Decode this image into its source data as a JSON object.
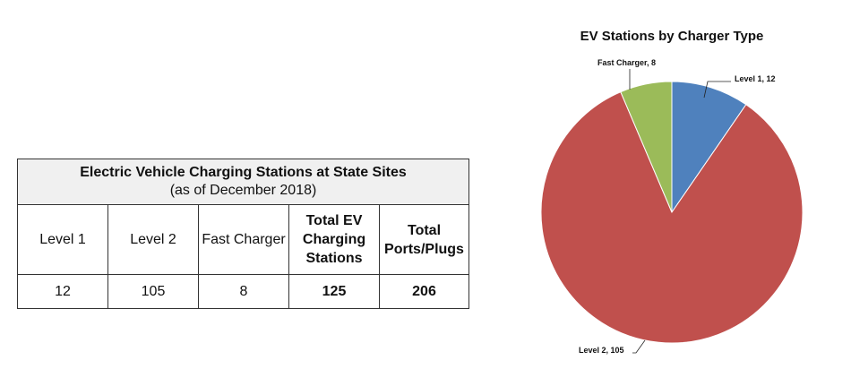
{
  "table": {
    "title": "Electric Vehicle Charging Stations at State Sites",
    "subtitle": "(as of December 2018)",
    "headers": [
      "Level 1",
      "Level 2",
      "Fast Charger",
      "Total EV Charging Stations",
      "Total Ports/Plugs"
    ],
    "values": [
      "12",
      "105",
      "8",
      "125",
      "206"
    ]
  },
  "chart_data": {
    "type": "pie",
    "title": "EV Stations by Charger Type",
    "slices": [
      {
        "name": "Level 1",
        "value": 12,
        "label": "Level 1, 12",
        "color": "#4f81bd"
      },
      {
        "name": "Level 2",
        "value": 105,
        "label": "Level 2, 105",
        "color": "#c0504d"
      },
      {
        "name": "Fast Charger",
        "value": 8,
        "label": "Fast Charger, 8",
        "color": "#9bbb59"
      }
    ],
    "start": "12 o'clock, clockwise"
  }
}
